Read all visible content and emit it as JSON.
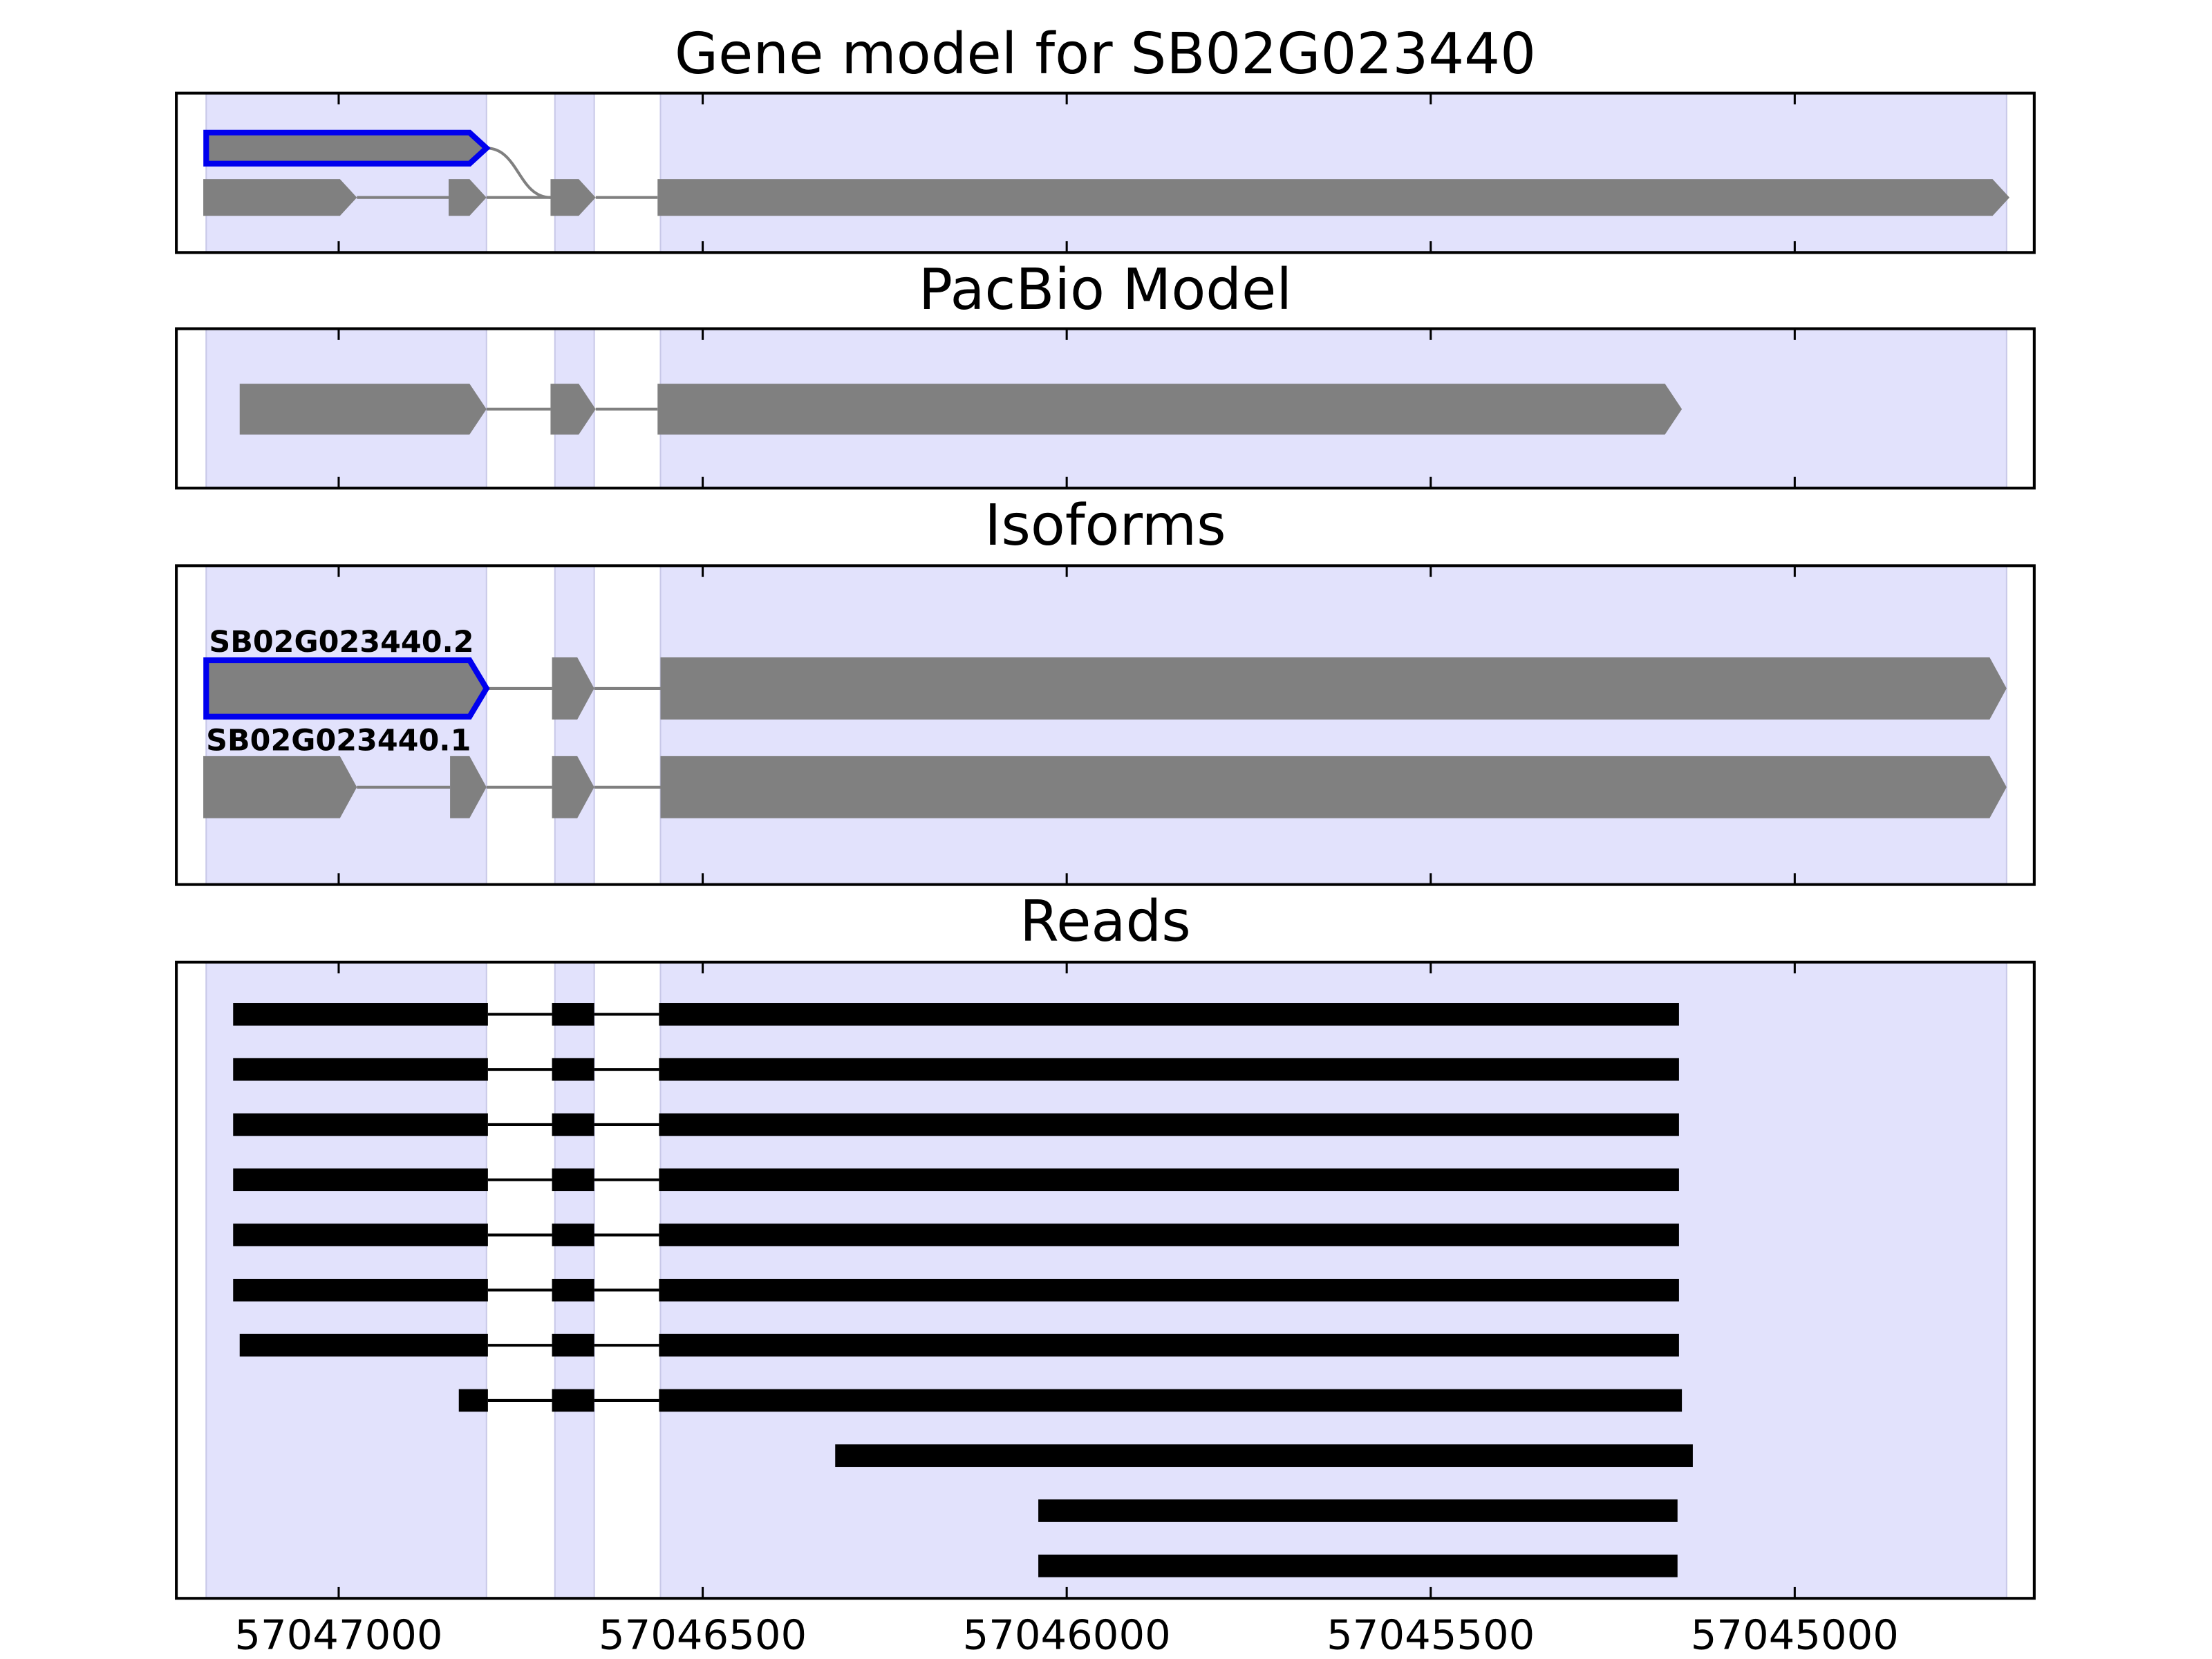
{
  "chart_data": {
    "type": "gene_model",
    "xlim": [
      57047223,
      57044671
    ],
    "xticks": [
      57047000,
      57046500,
      57046000,
      57045500,
      57045000
    ],
    "highlight_color": "#e2e2fc",
    "highlight_regions": [
      [
        57047182,
        57046797
      ],
      [
        57046703,
        57046649
      ],
      [
        57046558,
        57044709
      ]
    ],
    "panels": [
      {
        "title": "Gene model for SB02G023440",
        "style": "model",
        "color": "#808080",
        "highlight_edge": "#0000ee",
        "transcripts": [
          {
            "highlight": true,
            "exons": [
              [
                57047182,
                57046797
              ]
            ]
          },
          {
            "highlight": false,
            "exons": [
              [
                57047186,
                57046975
              ],
              [
                57046849,
                57046797
              ],
              [
                57046709,
                57046647
              ],
              [
                57046562,
                57044705
              ]
            ]
          }
        ]
      },
      {
        "title": "PacBio Model",
        "style": "model",
        "color": "#808080",
        "highlight_edge": "#0000ee",
        "transcripts": [
          {
            "highlight": false,
            "exons": [
              [
                57047136,
                57046797
              ],
              [
                57046709,
                57046647
              ],
              [
                57046562,
                57045155
              ]
            ]
          }
        ]
      },
      {
        "title": "Isoforms",
        "style": "model",
        "color": "#808080",
        "highlight_edge": "#0000ee",
        "transcripts": [
          {
            "name": "SB02G023440.2",
            "highlight": true,
            "exons": [
              [
                57047182,
                57046797
              ],
              [
                57046707,
                57046649
              ],
              [
                57046558,
                57044709
              ]
            ]
          },
          {
            "name": "SB02G023440.1",
            "highlight": false,
            "exons": [
              [
                57047186,
                57046975
              ],
              [
                57046847,
                57046797
              ],
              [
                57046707,
                57046649
              ],
              [
                57046558,
                57044709
              ]
            ]
          }
        ]
      },
      {
        "title": "Reads",
        "style": "reads",
        "color": "#000000",
        "transcripts": [
          {
            "exons": [
              [
                57047145,
                57046795
              ],
              [
                57046707,
                57046649
              ],
              [
                57046560,
                57045159
              ]
            ]
          },
          {
            "exons": [
              [
                57047145,
                57046795
              ],
              [
                57046707,
                57046649
              ],
              [
                57046560,
                57045159
              ]
            ]
          },
          {
            "exons": [
              [
                57047145,
                57046795
              ],
              [
                57046707,
                57046649
              ],
              [
                57046560,
                57045159
              ]
            ]
          },
          {
            "exons": [
              [
                57047145,
                57046795
              ],
              [
                57046707,
                57046649
              ],
              [
                57046560,
                57045159
              ]
            ]
          },
          {
            "exons": [
              [
                57047145,
                57046795
              ],
              [
                57046707,
                57046649
              ],
              [
                57046560,
                57045159
              ]
            ]
          },
          {
            "exons": [
              [
                57047145,
                57046795
              ],
              [
                57046707,
                57046649
              ],
              [
                57046560,
                57045159
              ]
            ]
          },
          {
            "exons": [
              [
                57047136,
                57046795
              ],
              [
                57046707,
                57046649
              ],
              [
                57046560,
                57045159
              ]
            ]
          },
          {
            "exons": [
              [
                57046835,
                57046795
              ],
              [
                57046707,
                57046649
              ],
              [
                57046560,
                57045155
              ]
            ]
          },
          {
            "exons": [
              [
                57046318,
                57045140
              ]
            ]
          },
          {
            "exons": [
              [
                57046039,
                57045161
              ]
            ]
          },
          {
            "exons": [
              [
                57046039,
                57045161
              ]
            ]
          }
        ]
      }
    ]
  }
}
